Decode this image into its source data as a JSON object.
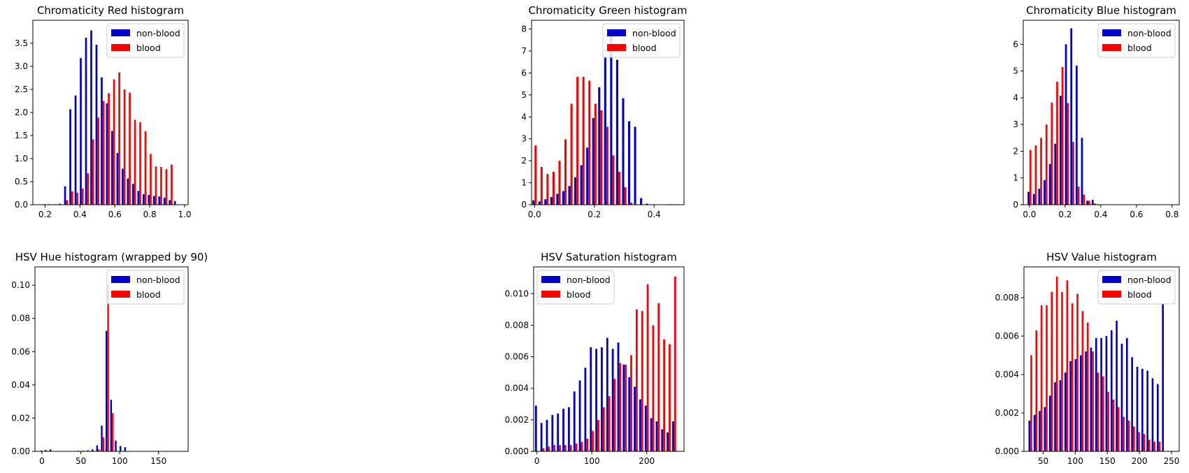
{
  "colors": {
    "non_blood": "#0000cc",
    "blood": "#ff0000"
  },
  "legend": {
    "non_blood": "non-blood",
    "blood": "blood"
  },
  "chart_data": [
    {
      "type": "bar",
      "title": "Chromaticity Red histogram",
      "xlim": [
        0.13,
        1.02
      ],
      "ylim": [
        0,
        4.0
      ],
      "xticks": [
        0.2,
        0.4,
        0.6,
        0.8,
        1.0
      ],
      "xtick_labels": [
        "0.2",
        "0.4",
        "0.6",
        "0.8",
        "1.0"
      ],
      "yticks": [
        0,
        0.5,
        1.0,
        1.5,
        2.0,
        2.5,
        3.0,
        3.5
      ],
      "ytick_labels": [
        "0.0",
        "0.5",
        "1.0",
        "1.5",
        "2.0",
        "2.5",
        "3.0",
        "3.5"
      ],
      "legend_position": "upper-right",
      "categories": [
        0.17,
        0.2,
        0.23,
        0.26,
        0.29,
        0.32,
        0.35,
        0.38,
        0.41,
        0.44,
        0.47,
        0.5,
        0.53,
        0.56,
        0.59,
        0.62,
        0.65,
        0.68,
        0.71,
        0.74,
        0.77,
        0.8,
        0.83,
        0.86,
        0.89,
        0.92,
        0.95,
        0.98
      ],
      "series": [
        {
          "name": "non-blood",
          "values": [
            0.0,
            0.01,
            0.01,
            0.01,
            0.02,
            0.4,
            2.07,
            2.37,
            3.18,
            3.62,
            3.78,
            3.47,
            2.76,
            2.2,
            1.6,
            1.12,
            0.78,
            0.57,
            0.45,
            0.3,
            0.23,
            0.21,
            0.19,
            0.18,
            0.15,
            0.1,
            0.08,
            0.0
          ]
        },
        {
          "name": "blood",
          "values": [
            0.0,
            0.0,
            0.0,
            0.0,
            0.0,
            0.1,
            0.29,
            0.26,
            0.35,
            0.68,
            1.42,
            1.89,
            2.25,
            2.42,
            2.72,
            2.87,
            2.5,
            2.43,
            1.84,
            1.79,
            1.59,
            1.1,
            0.83,
            0.82,
            0.77,
            0.87,
            0.0,
            0.0
          ]
        }
      ]
    },
    {
      "type": "bar",
      "title": "Chromaticity Green histogram",
      "xlim": [
        -0.01,
        0.5
      ],
      "ylim": [
        0,
        8.4
      ],
      "xticks": [
        0.0,
        0.2,
        0.4
      ],
      "xtick_labels": [
        "0.0",
        "0.2",
        "0.4"
      ],
      "yticks": [
        0,
        1,
        2,
        3,
        4,
        5,
        6,
        7,
        8
      ],
      "ytick_labels": [
        "0",
        "1",
        "2",
        "3",
        "4",
        "5",
        "6",
        "7",
        "8"
      ],
      "legend_position": "upper-right",
      "categories": [
        0.0,
        0.02,
        0.04,
        0.06,
        0.08,
        0.1,
        0.12,
        0.14,
        0.16,
        0.18,
        0.2,
        0.22,
        0.24,
        0.26,
        0.28,
        0.3,
        0.32,
        0.34,
        0.36,
        0.38,
        0.4,
        0.42,
        0.44,
        0.46,
        0.48
      ],
      "series": [
        {
          "name": "non-blood",
          "values": [
            0.2,
            0.15,
            0.25,
            0.35,
            0.5,
            0.62,
            0.85,
            1.25,
            1.8,
            2.6,
            3.95,
            5.35,
            6.7,
            7.75,
            6.6,
            4.85,
            3.8,
            3.55,
            0.3,
            0.05,
            0.0,
            0.0,
            0.0,
            0.02,
            0.02
          ]
        },
        {
          "name": "blood",
          "values": [
            2.7,
            1.72,
            1.4,
            1.5,
            2.0,
            2.98,
            4.6,
            5.82,
            5.82,
            5.65,
            4.6,
            4.3,
            3.55,
            2.25,
            1.5,
            0.8,
            0.1,
            0.02,
            0.0,
            0.0,
            0.0,
            0.0,
            0.0,
            0.0,
            0.0
          ]
        }
      ]
    },
    {
      "type": "bar",
      "title": "Chromaticity Blue histogram",
      "xlim": [
        -0.035,
        0.84
      ],
      "ylim": [
        0,
        6.9
      ],
      "xticks": [
        0.0,
        0.2,
        0.4,
        0.6,
        0.8
      ],
      "xtick_labels": [
        "0.0",
        "0.2",
        "0.4",
        "0.6",
        "0.8"
      ],
      "yticks": [
        0,
        1,
        2,
        3,
        4,
        5,
        6
      ],
      "ytick_labels": [
        "0",
        "1",
        "2",
        "3",
        "4",
        "5",
        "6"
      ],
      "legend_position": "upper-right",
      "categories": [
        0.0,
        0.03,
        0.06,
        0.09,
        0.12,
        0.15,
        0.18,
        0.21,
        0.24,
        0.27,
        0.3,
        0.33,
        0.36,
        0.39,
        0.42,
        0.45
      ],
      "series": [
        {
          "name": "non-blood",
          "values": [
            0.48,
            0.4,
            0.6,
            0.92,
            1.52,
            2.28,
            4.08,
            6.0,
            6.6,
            5.2,
            2.5,
            0.15,
            0.18,
            0.02,
            0.01,
            0.0
          ]
        },
        {
          "name": "blood",
          "values": [
            2.05,
            2.22,
            2.5,
            3.0,
            3.82,
            4.6,
            5.15,
            3.8,
            2.35,
            0.68,
            0.38,
            0.15,
            0.05,
            0.0,
            0.0,
            0.0
          ]
        }
      ]
    },
    {
      "type": "bar",
      "title": "HSV Hue histogram (wrapped by 90)",
      "xlim": [
        -9,
        188
      ],
      "ylim": [
        0,
        0.111
      ],
      "xticks": [
        0,
        50,
        100,
        150
      ],
      "xtick_labels": [
        "0",
        "50",
        "100",
        "150"
      ],
      "yticks": [
        0,
        0.02,
        0.04,
        0.06,
        0.08,
        0.1
      ],
      "ytick_labels": [
        "0.00",
        "0.02",
        "0.04",
        "0.06",
        "0.08",
        "0.10"
      ],
      "legend_position": "upper-right",
      "categories": [
        0,
        6,
        12,
        18,
        24,
        30,
        36,
        42,
        48,
        54,
        60,
        66,
        72,
        78,
        84,
        90,
        96,
        102,
        108,
        114,
        120,
        126,
        132,
        138,
        144,
        150,
        156,
        162,
        168,
        174
      ],
      "series": [
        {
          "name": "non-blood",
          "values": [
            0.0005,
            0.0008,
            0.0012,
            0.0,
            0.0,
            0.0,
            0.0,
            0.0,
            0.0004,
            0.0004,
            0.0006,
            0.0012,
            0.0036,
            0.0155,
            0.0725,
            0.031,
            0.0065,
            0.0032,
            0.0025,
            0.0,
            0.0,
            0.0,
            0.0,
            0.0,
            0.0,
            0.0,
            0.0,
            0.0,
            0.0,
            0.0
          ]
        },
        {
          "name": "blood",
          "values": [
            0.0,
            0.0,
            0.0,
            0.0,
            0.0,
            0.0,
            0.0,
            0.0,
            0.0,
            0.0,
            0.0,
            0.0,
            0.0012,
            0.0085,
            0.1,
            0.023,
            0.0,
            0.0,
            0.0,
            0.0,
            0.0,
            0.0,
            0.0,
            0.0,
            0.0,
            0.0,
            0.0,
            0.0,
            0.0,
            0.0
          ]
        }
      ]
    },
    {
      "type": "bar",
      "title": "HSV Saturation histogram",
      "xlim": [
        -6,
        268
      ],
      "ylim": [
        0,
        0.0117
      ],
      "xticks": [
        0,
        100,
        200
      ],
      "xtick_labels": [
        "0",
        "100",
        "200"
      ],
      "yticks": [
        0,
        0.002,
        0.004,
        0.006,
        0.008,
        0.01
      ],
      "ytick_labels": [
        "0.000",
        "0.002",
        "0.004",
        "0.006",
        "0.008",
        "0.010"
      ],
      "legend_position": "upper-left",
      "categories": [
        0,
        10,
        20,
        30,
        40,
        50,
        60,
        70,
        80,
        90,
        100,
        110,
        120,
        130,
        140,
        150,
        160,
        170,
        180,
        190,
        200,
        210,
        220,
        230,
        240,
        250
      ],
      "series": [
        {
          "name": "non-blood",
          "values": [
            0.0029,
            0.0018,
            0.002,
            0.0023,
            0.0024,
            0.0027,
            0.0028,
            0.0038,
            0.0045,
            0.0053,
            0.0066,
            0.0065,
            0.0066,
            0.0072,
            0.0065,
            0.0069,
            0.0055,
            0.0047,
            0.0041,
            0.0033,
            0.0029,
            0.0021,
            0.0019,
            0.0014,
            0.0012,
            0.0019
          ]
        },
        {
          "name": "blood",
          "values": [
            0.0,
            0.0002,
            0.0003,
            0.0004,
            0.0004,
            0.0004,
            0.0004,
            0.0005,
            0.0006,
            0.0008,
            0.0013,
            0.002,
            0.0028,
            0.0035,
            0.0046,
            0.0056,
            0.0055,
            0.0061,
            0.009,
            0.0089,
            0.0106,
            0.008,
            0.0094,
            0.0071,
            0.0068,
            0.0111
          ]
        }
      ]
    },
    {
      "type": "bar",
      "title": "HSV Value histogram",
      "xlim": [
        20,
        262
      ],
      "ylim": [
        0,
        0.0096
      ],
      "xticks": [
        50,
        100,
        150,
        200,
        250
      ],
      "xtick_labels": [
        "50",
        "100",
        "150",
        "200",
        "250"
      ],
      "yticks": [
        0,
        0.002,
        0.004,
        0.006,
        0.008
      ],
      "ytick_labels": [
        "0.000",
        "0.002",
        "0.004",
        "0.006",
        "0.008"
      ],
      "legend_position": "upper-right",
      "categories": [
        30,
        38,
        46,
        54,
        62,
        70,
        78,
        86,
        94,
        102,
        110,
        118,
        126,
        134,
        142,
        150,
        158,
        166,
        174,
        182,
        190,
        198,
        206,
        214,
        222,
        230,
        238,
        246,
        254
      ],
      "series": [
        {
          "name": "non-blood",
          "values": [
            0.0016,
            0.0019,
            0.0021,
            0.0023,
            0.0029,
            0.0036,
            0.0037,
            0.0041,
            0.0047,
            0.0048,
            0.005,
            0.0052,
            0.0054,
            0.0059,
            0.0059,
            0.006,
            0.0063,
            0.0068,
            0.0056,
            0.0059,
            0.0049,
            0.0044,
            0.0043,
            0.0042,
            0.0038,
            0.0035,
            0.0077,
            0.0,
            0.0
          ]
        },
        {
          "name": "blood",
          "values": [
            0.005,
            0.0063,
            0.0076,
            0.0076,
            0.0083,
            0.0091,
            0.0083,
            0.0089,
            0.0077,
            0.0082,
            0.0073,
            0.0067,
            0.0052,
            0.0041,
            0.0039,
            0.0031,
            0.0027,
            0.0023,
            0.0018,
            0.0016,
            0.0013,
            0.001,
            0.0009,
            0.0006,
            0.0005,
            0.0005,
            0.0,
            0.0,
            0.0
          ]
        }
      ]
    }
  ]
}
